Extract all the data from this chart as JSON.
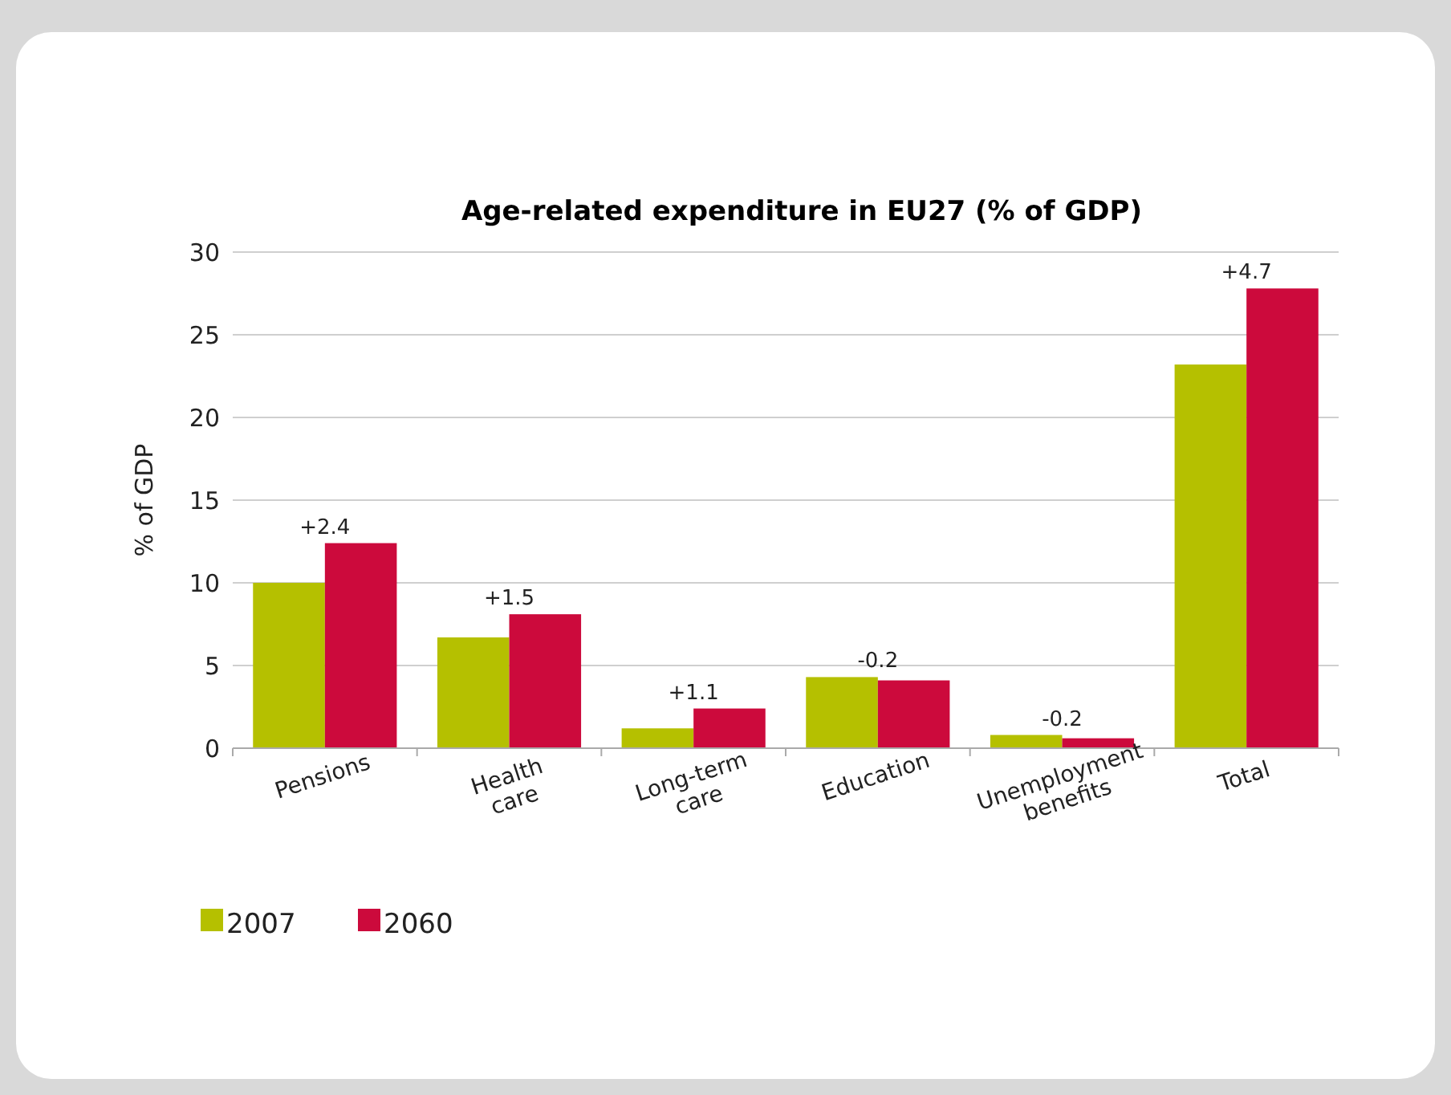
{
  "chart_data": {
    "type": "bar",
    "title": "Age-related expenditure in EU27 (% of GDP)",
    "ylabel": "% of GDP",
    "categories": [
      "Pensions",
      "Health care",
      "Long-term care",
      "Education",
      "Unemployment benefits",
      "Total"
    ],
    "series": [
      {
        "name": "2007",
        "color": "#b5c000",
        "values": [
          10.0,
          6.7,
          1.2,
          4.3,
          0.8,
          23.2
        ]
      },
      {
        "name": "2060",
        "color": "#cc0a3c",
        "values": [
          12.4,
          8.1,
          2.4,
          4.1,
          0.6,
          27.8
        ]
      }
    ],
    "ylim": [
      0,
      30
    ],
    "yticks": [
      0,
      5,
      10,
      15,
      20,
      25,
      30
    ],
    "grid": "y",
    "legend": "bottom left",
    "annotations": [
      {
        "text": "+2.4",
        "x": "Pensions",
        "y": 12.4
      },
      {
        "text": "+1.5",
        "x": "Health care",
        "y": 8.1
      },
      {
        "text": "+1.1",
        "x": "Long-term care",
        "y": 2.4
      },
      {
        "text": "-0.2",
        "x": "Education",
        "y": 4.3
      },
      {
        "text": "-0.2",
        "x": "Unemployment benefits",
        "y": 0.8
      },
      {
        "text": "+4.7",
        "x": "Total",
        "y": 27.8
      }
    ]
  }
}
